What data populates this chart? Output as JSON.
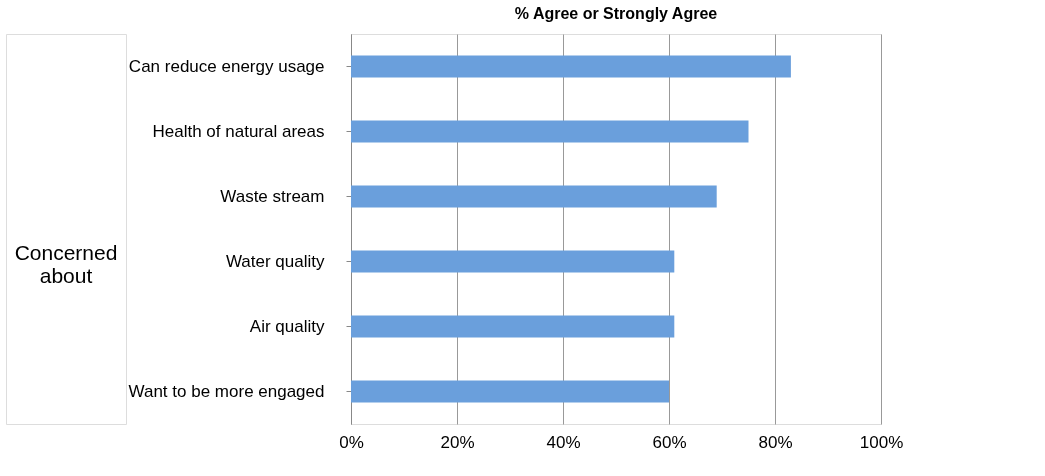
{
  "chart_data": {
    "type": "bar",
    "orientation": "horizontal",
    "title": "% Agree or Strongly Agree",
    "categories": [
      "Can reduce energy usage",
      "Health of natural areas",
      "Waste stream",
      "Water quality",
      "Air quality",
      "Want to be more engaged"
    ],
    "values": [
      83,
      75,
      69,
      61,
      61,
      60
    ],
    "color": "#6a9fdc",
    "xlim": [
      0,
      100
    ],
    "xticks": [
      {
        "value": 0,
        "label": "0%"
      },
      {
        "value": 20,
        "label": "20%"
      },
      {
        "value": 40,
        "label": "40%"
      },
      {
        "value": 60,
        "label": "60%"
      },
      {
        "value": 80,
        "label": "80%"
      },
      {
        "value": 100,
        "label": "100%"
      }
    ],
    "grid": "x",
    "annotations": [
      "Concerned\nabout"
    ]
  }
}
